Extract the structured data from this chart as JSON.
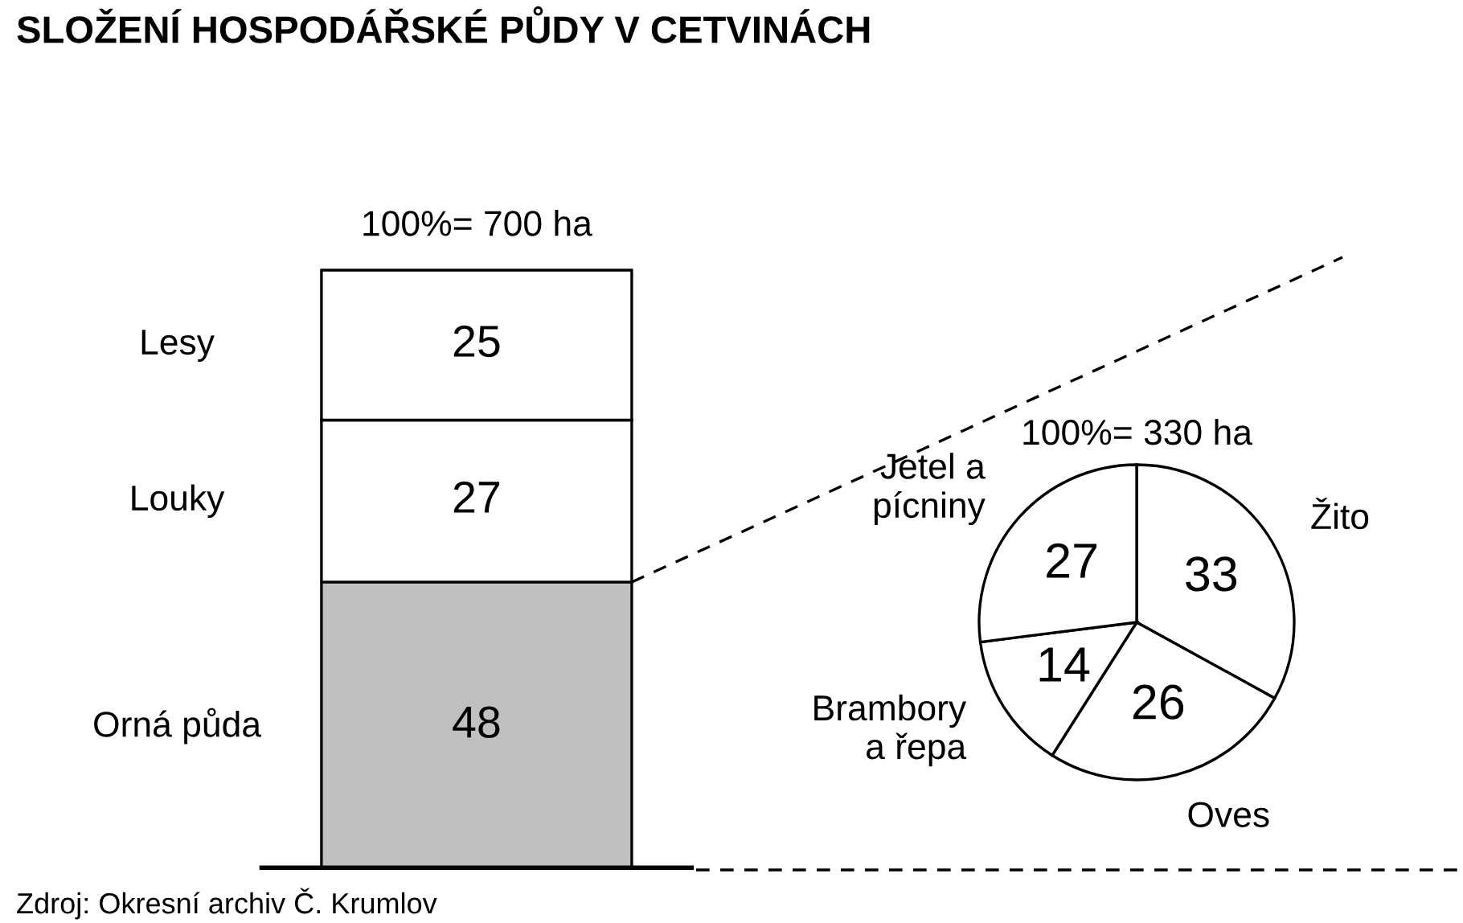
{
  "chart_data": [
    {
      "type": "bar",
      "title": "SLOŽENÍ HOSPODÁŘSKÉ PŮDY V CETVINÁCH",
      "subtitle": "100%= 700 ha",
      "categories": [
        null
      ],
      "stacked": true,
      "data_labels": true,
      "series": [
        {
          "name": "Orná půda",
          "color": "#c0c0c0",
          "values": [
            48
          ]
        },
        {
          "name": "Louky",
          "color": "#ffffff",
          "values": [
            27
          ]
        },
        {
          "name": "Lesy",
          "color": "#ffffff",
          "values": [
            25
          ]
        }
      ],
      "annotations": [
        "Zdroj: Okresní archiv Č. Krumlov"
      ]
    },
    {
      "type": "pie",
      "subtitle": "100%= 330 ha",
      "categories": [
        "Žito",
        "Oves",
        "Brambory\na řepa",
        "Jetel a\npícniny"
      ],
      "values": [
        33,
        26,
        14,
        27
      ],
      "colors": [
        "#ffffff",
        "#ffffff",
        "#ffffff",
        "#ffffff"
      ],
      "data_labels": true
    }
  ]
}
